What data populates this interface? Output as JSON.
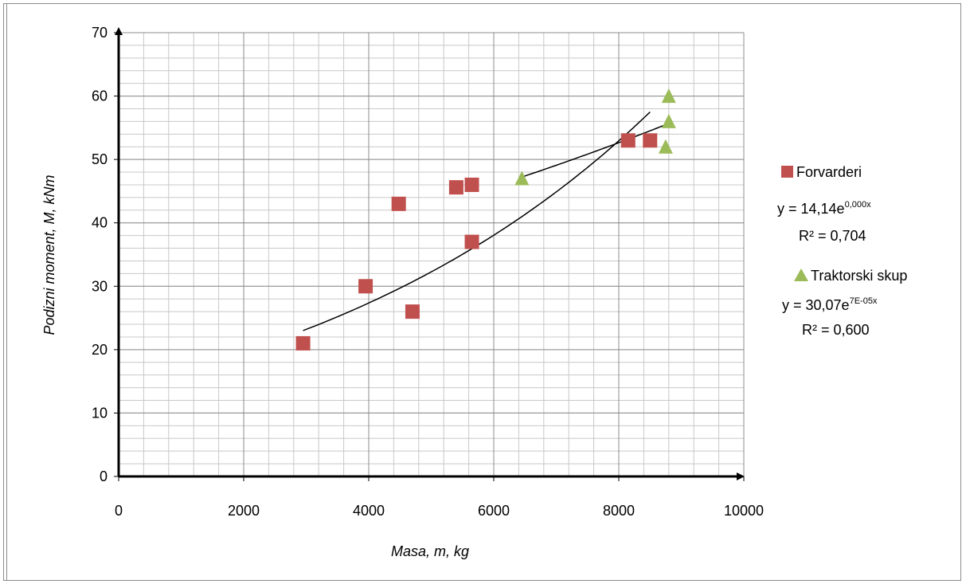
{
  "chart_data": {
    "type": "scatter",
    "xlabel": "Masa, m, kg",
    "ylabel": "Podizni moment, M, kNm",
    "xlim": [
      0,
      10000
    ],
    "ylim": [
      0,
      70
    ],
    "x_ticks": [
      "0",
      "2000",
      "4000",
      "6000",
      "8000",
      "10000"
    ],
    "y_ticks": [
      "0",
      "10",
      "20",
      "30",
      "40",
      "50",
      "60",
      "70"
    ],
    "grid": true,
    "legend_position": "right",
    "series": [
      {
        "name": "Forvarderi",
        "marker": "square",
        "color": "#c0504d",
        "points": [
          [
            2950,
            21
          ],
          [
            3950,
            30
          ],
          [
            4480,
            43
          ],
          [
            4700,
            26
          ],
          [
            5400,
            45.6
          ],
          [
            5650,
            46
          ],
          [
            5650,
            37
          ],
          [
            8150,
            53
          ],
          [
            8500,
            53
          ]
        ],
        "trendline": {
          "type": "exponential",
          "a": 14.14,
          "b": 0.000165,
          "x_range": [
            2950,
            8500
          ]
        },
        "equation": {
          "base": "y = 14,14e",
          "exp": "0,000x"
        },
        "r2": "R² = 0,704"
      },
      {
        "name": "Traktorski skup",
        "marker": "triangle",
        "color": "#9bbb59",
        "points": [
          [
            6450,
            47
          ],
          [
            8750,
            52
          ],
          [
            8800,
            56
          ],
          [
            8800,
            60
          ]
        ],
        "trendline": {
          "type": "exponential",
          "a": 30.07,
          "b": 7e-05,
          "x_range": [
            6450,
            8800
          ]
        },
        "equation": {
          "base": "y = 30,07e",
          "exp": "7E-05x"
        },
        "r2": "R² = 0,600"
      }
    ]
  }
}
